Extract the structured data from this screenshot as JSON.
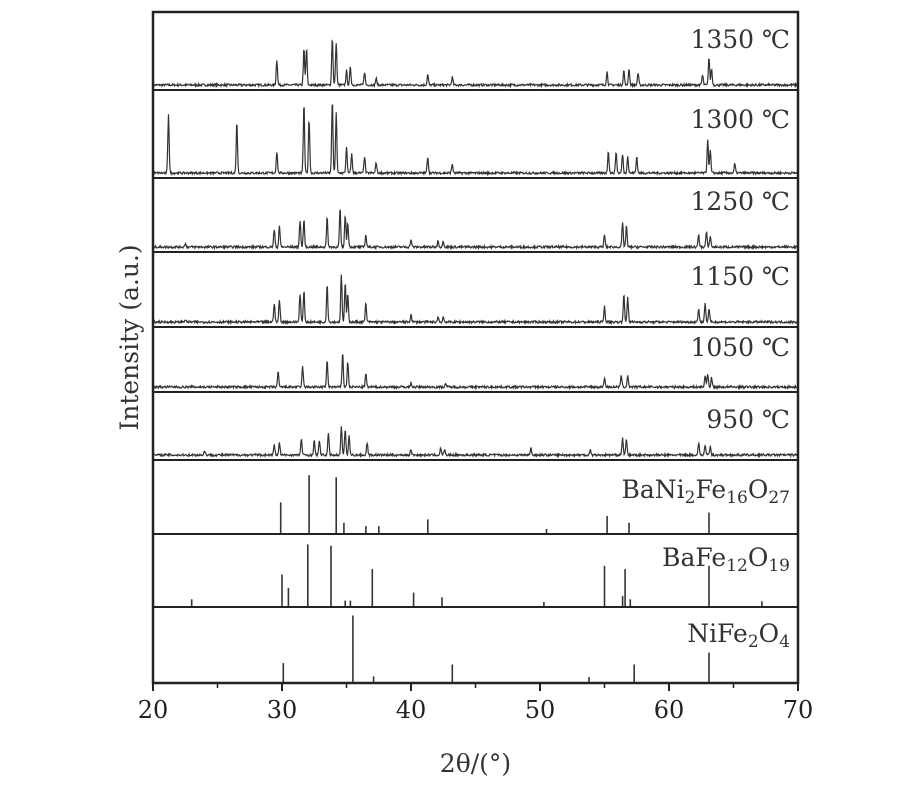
{
  "chart_data": {
    "type": "line",
    "xlabel": "2θ/(°)",
    "ylabel": "Intensity (a.u.)",
    "xlim": [
      20,
      70
    ],
    "xticks": [
      20,
      30,
      40,
      50,
      60,
      70
    ],
    "grid": false,
    "panels": [
      {
        "id": "t1350",
        "label": "1350 ℃",
        "kind": "pattern",
        "peaks": [
          [
            29.6,
            0.38
          ],
          [
            31.7,
            0.55
          ],
          [
            31.9,
            0.55
          ],
          [
            33.9,
            0.72
          ],
          [
            34.2,
            0.65
          ],
          [
            35.0,
            0.22
          ],
          [
            35.3,
            0.28
          ],
          [
            36.4,
            0.2
          ],
          [
            37.3,
            0.1
          ],
          [
            41.3,
            0.16
          ],
          [
            43.2,
            0.12
          ],
          [
            55.2,
            0.2
          ],
          [
            56.5,
            0.22
          ],
          [
            56.9,
            0.25
          ],
          [
            57.6,
            0.18
          ],
          [
            62.6,
            0.15
          ],
          [
            63.1,
            0.42
          ],
          [
            63.3,
            0.25
          ]
        ]
      },
      {
        "id": "t1300",
        "label": "1300 ℃",
        "kind": "pattern",
        "peaks": [
          [
            21.2,
            0.78
          ],
          [
            26.5,
            0.68
          ],
          [
            29.6,
            0.28
          ],
          [
            31.7,
            0.92
          ],
          [
            32.1,
            0.72
          ],
          [
            33.9,
            0.95
          ],
          [
            34.2,
            0.8
          ],
          [
            35.0,
            0.35
          ],
          [
            35.4,
            0.25
          ],
          [
            36.4,
            0.22
          ],
          [
            37.3,
            0.14
          ],
          [
            41.3,
            0.22
          ],
          [
            43.2,
            0.12
          ],
          [
            55.3,
            0.3
          ],
          [
            55.9,
            0.28
          ],
          [
            56.4,
            0.25
          ],
          [
            56.8,
            0.22
          ],
          [
            57.5,
            0.22
          ],
          [
            63.0,
            0.45
          ],
          [
            63.2,
            0.3
          ],
          [
            65.1,
            0.12
          ]
        ]
      },
      {
        "id": "t1250",
        "label": "1250 ℃",
        "kind": "pattern",
        "peaks": [
          [
            22.5,
            0.06
          ],
          [
            29.4,
            0.28
          ],
          [
            29.8,
            0.35
          ],
          [
            31.4,
            0.42
          ],
          [
            31.7,
            0.45
          ],
          [
            33.5,
            0.48
          ],
          [
            34.5,
            0.62
          ],
          [
            34.9,
            0.52
          ],
          [
            35.1,
            0.4
          ],
          [
            36.5,
            0.2
          ],
          [
            40.0,
            0.12
          ],
          [
            42.1,
            0.1
          ],
          [
            42.5,
            0.1
          ],
          [
            55.0,
            0.2
          ],
          [
            56.4,
            0.38
          ],
          [
            56.7,
            0.35
          ],
          [
            62.3,
            0.2
          ],
          [
            62.9,
            0.24
          ],
          [
            63.2,
            0.18
          ]
        ]
      },
      {
        "id": "t1150",
        "label": "1150 ℃",
        "kind": "pattern",
        "peaks": [
          [
            22.5,
            0.04
          ],
          [
            29.4,
            0.3
          ],
          [
            29.8,
            0.35
          ],
          [
            31.4,
            0.45
          ],
          [
            31.7,
            0.5
          ],
          [
            33.5,
            0.6
          ],
          [
            34.6,
            0.75
          ],
          [
            34.9,
            0.62
          ],
          [
            35.1,
            0.45
          ],
          [
            36.5,
            0.3
          ],
          [
            40.0,
            0.12
          ],
          [
            42.1,
            0.08
          ],
          [
            42.5,
            0.08
          ],
          [
            55.0,
            0.25
          ],
          [
            56.5,
            0.45
          ],
          [
            56.8,
            0.4
          ],
          [
            62.3,
            0.22
          ],
          [
            62.8,
            0.3
          ],
          [
            63.1,
            0.2
          ]
        ]
      },
      {
        "id": "t1050",
        "label": "1050 ℃",
        "kind": "pattern",
        "peaks": [
          [
            29.7,
            0.28
          ],
          [
            31.6,
            0.38
          ],
          [
            33.5,
            0.5
          ],
          [
            34.7,
            0.65
          ],
          [
            35.1,
            0.48
          ],
          [
            36.5,
            0.25
          ],
          [
            40.0,
            0.08
          ],
          [
            42.7,
            0.07
          ],
          [
            55.0,
            0.18
          ],
          [
            56.3,
            0.22
          ],
          [
            56.8,
            0.22
          ],
          [
            62.8,
            0.22
          ],
          [
            63.0,
            0.26
          ],
          [
            63.3,
            0.18
          ]
        ]
      },
      {
        "id": "t950",
        "label": "950 ℃",
        "kind": "pattern",
        "peaks": [
          [
            24.0,
            0.08
          ],
          [
            29.4,
            0.18
          ],
          [
            29.8,
            0.22
          ],
          [
            31.5,
            0.3
          ],
          [
            32.5,
            0.26
          ],
          [
            32.9,
            0.26
          ],
          [
            33.6,
            0.38
          ],
          [
            34.6,
            0.52
          ],
          [
            34.9,
            0.46
          ],
          [
            35.2,
            0.35
          ],
          [
            36.6,
            0.22
          ],
          [
            40.0,
            0.1
          ],
          [
            42.3,
            0.12
          ],
          [
            42.6,
            0.1
          ],
          [
            49.3,
            0.12
          ],
          [
            53.9,
            0.1
          ],
          [
            56.4,
            0.3
          ],
          [
            56.7,
            0.28
          ],
          [
            62.3,
            0.22
          ],
          [
            62.8,
            0.18
          ],
          [
            63.2,
            0.15
          ]
        ]
      },
      {
        "id": "bani",
        "label": "BaNi2Fe16O27",
        "label_parts": [
          [
            "BaNi",
            ""
          ],
          [
            "2",
            "sub"
          ],
          [
            "Fe",
            ""
          ],
          [
            "16",
            "sub"
          ],
          [
            "O",
            ""
          ],
          [
            "27",
            "sub"
          ]
        ],
        "kind": "reference",
        "peaks": [
          [
            29.9,
            0.45
          ],
          [
            32.1,
            0.85
          ],
          [
            34.2,
            0.82
          ],
          [
            34.8,
            0.15
          ],
          [
            36.5,
            0.1
          ],
          [
            37.5,
            0.1
          ],
          [
            41.3,
            0.2
          ],
          [
            50.5,
            0.06
          ],
          [
            55.2,
            0.25
          ],
          [
            56.9,
            0.15
          ],
          [
            63.1,
            0.3
          ]
        ]
      },
      {
        "id": "bafe",
        "label": "BaFe12O19",
        "label_parts": [
          [
            "BaFe",
            ""
          ],
          [
            "12",
            "sub"
          ],
          [
            "O",
            ""
          ],
          [
            "19",
            "sub"
          ]
        ],
        "kind": "reference",
        "peaks": [
          [
            23.0,
            0.1
          ],
          [
            30.0,
            0.47
          ],
          [
            30.5,
            0.27
          ],
          [
            32.0,
            0.92
          ],
          [
            33.8,
            0.9
          ],
          [
            34.9,
            0.08
          ],
          [
            35.3,
            0.08
          ],
          [
            37.0,
            0.55
          ],
          [
            40.2,
            0.2
          ],
          [
            42.4,
            0.13
          ],
          [
            50.3,
            0.06
          ],
          [
            55.0,
            0.6
          ],
          [
            56.4,
            0.15
          ],
          [
            56.6,
            0.55
          ],
          [
            57.0,
            0.1
          ],
          [
            63.1,
            0.6
          ],
          [
            67.2,
            0.07
          ]
        ]
      },
      {
        "id": "nife",
        "label": "NiFe2O4",
        "label_parts": [
          [
            "NiFe",
            ""
          ],
          [
            "2",
            "sub"
          ],
          [
            "O",
            ""
          ],
          [
            "4",
            "sub"
          ]
        ],
        "kind": "reference",
        "peaks": [
          [
            30.1,
            0.27
          ],
          [
            35.5,
            0.95
          ],
          [
            37.1,
            0.08
          ],
          [
            43.2,
            0.25
          ],
          [
            53.8,
            0.07
          ],
          [
            57.3,
            0.25
          ],
          [
            63.1,
            0.42
          ]
        ]
      }
    ]
  }
}
